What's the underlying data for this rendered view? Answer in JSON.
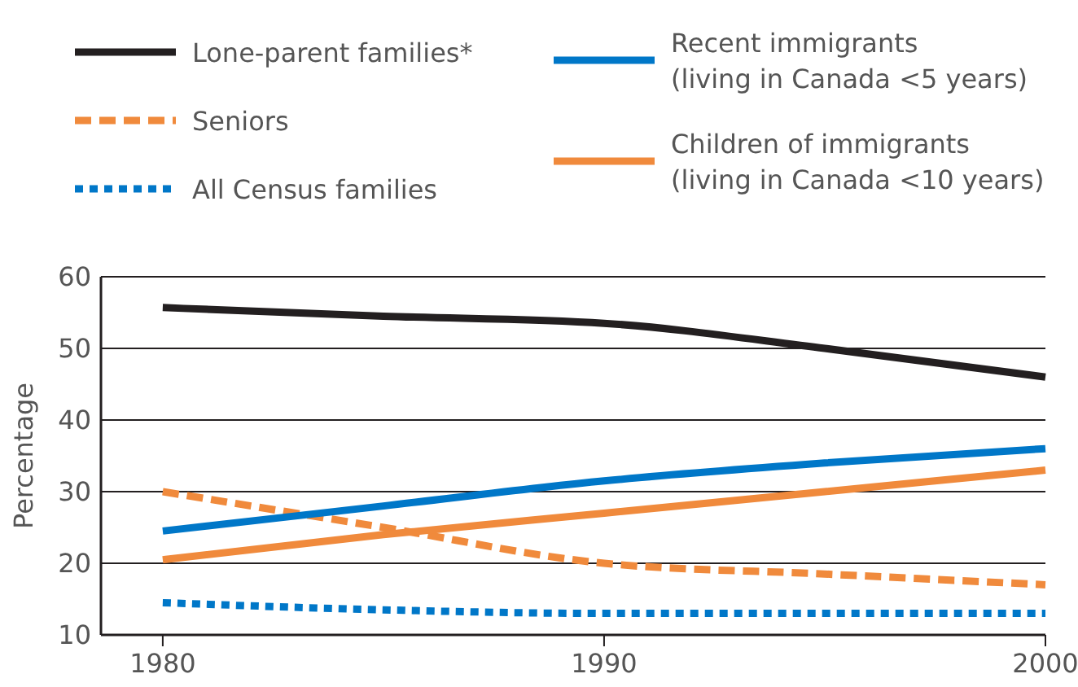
{
  "chart_data": {
    "type": "line",
    "ylabel": "Percentage",
    "x": [
      1980,
      1985,
      1990,
      1995,
      2000
    ],
    "xlim": [
      1978.6,
      2000
    ],
    "xticks": [
      1980,
      1990,
      2000
    ],
    "ylim": [
      10,
      60
    ],
    "yticks": [
      10,
      20,
      30,
      40,
      50,
      60
    ],
    "grid": "y",
    "legend": "top",
    "marker": "none",
    "series": [
      {
        "name": "Lone-parent families*",
        "color": "#231f20",
        "line_style": "solid",
        "values": [
          55.7,
          54.5,
          53.5,
          50,
          46
        ]
      },
      {
        "name": "Seniors",
        "color": "#f08a3c",
        "line_style": "dashed",
        "values": [
          30,
          25,
          20,
          18.5,
          17
        ]
      },
      {
        "name": "All Census families",
        "color": "#0077c8",
        "line_style": "dotted",
        "values": [
          14.5,
          13.5,
          13,
          13,
          13
        ]
      },
      {
        "name": "Recent immigrants\n(living in Canada <5 years)",
        "color": "#0077c8",
        "line_style": "solid",
        "values": [
          24.5,
          28,
          31.5,
          34,
          36
        ]
      },
      {
        "name": "Children of immigrants\n(living in Canada <10 years)",
        "color": "#f08a3c",
        "line_style": "solid",
        "values": [
          20.5,
          24,
          27,
          30,
          33
        ]
      }
    ]
  }
}
